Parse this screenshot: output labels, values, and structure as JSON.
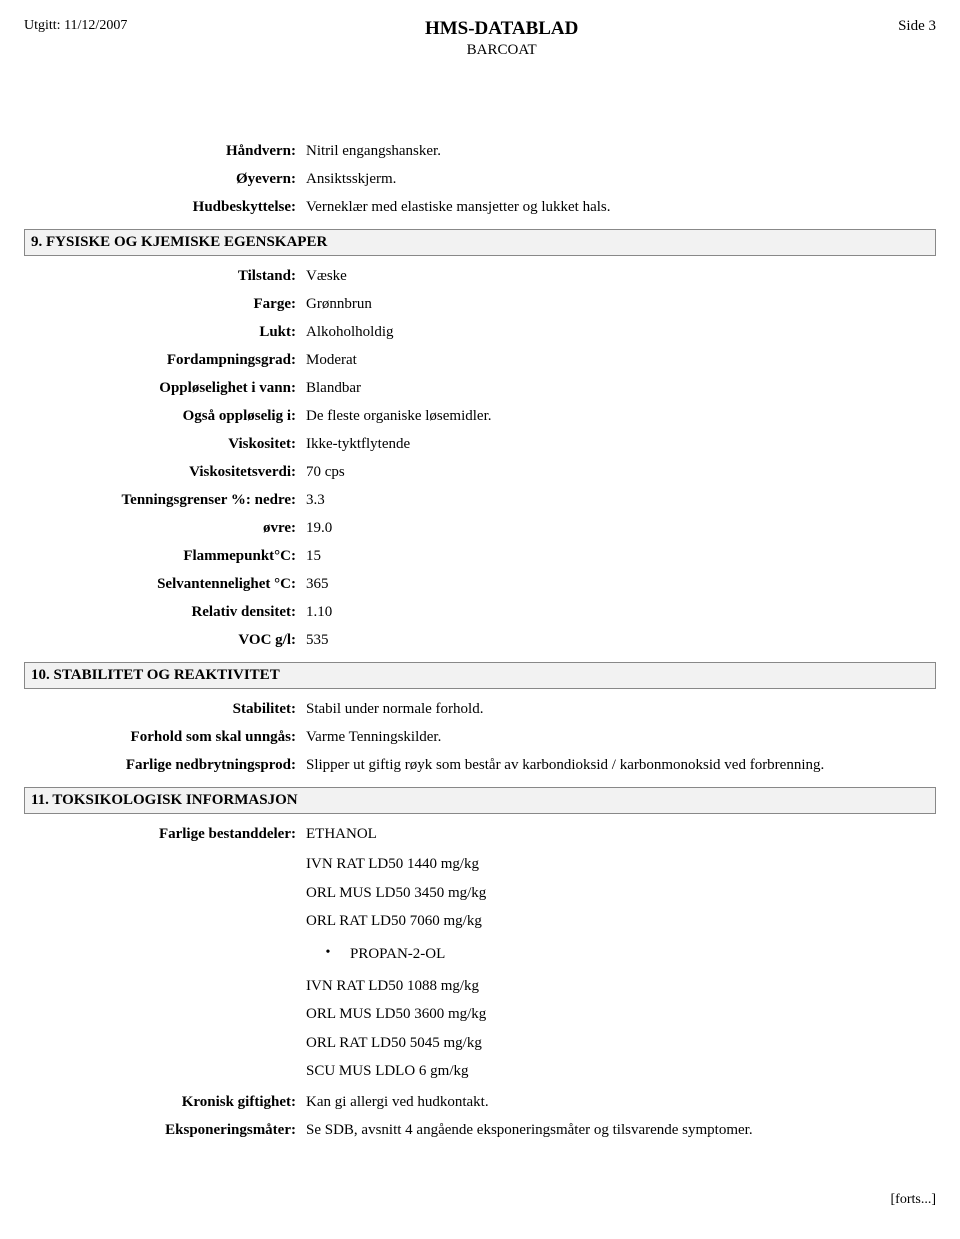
{
  "header": {
    "issued_label": "Utgitt:",
    "issued_date": "11/12/2007",
    "doc_title": "HMS-DATABLAD",
    "product": "BARCOAT",
    "page_label": "Side 3"
  },
  "ppe": {
    "hand_label": "Håndvern:",
    "hand_value": "Nitril engangshansker.",
    "eye_label": "Øyevern:",
    "eye_value": "Ansiktsskjerm.",
    "skin_label": "Hudbeskyttelse:",
    "skin_value": "Verneklær med elastiske mansjetter og lukket hals."
  },
  "sec9": {
    "title": "9. FYSISKE OG KJEMISKE EGENSKAPER",
    "state_label": "Tilstand:",
    "state_value": "Væske",
    "color_label": "Farge:",
    "color_value": "Grønnbrun",
    "odour_label": "Lukt:",
    "odour_value": "Alkoholholdig",
    "evap_label": "Fordampningsgrad:",
    "evap_value": "Moderat",
    "solw_label": "Oppløselighet i vann:",
    "solw_value": "Blandbar",
    "alsosol_label": "Også oppløselig i:",
    "alsosol_value": "De fleste organiske løsemidler.",
    "visc_label": "Viskositet:",
    "visc_value": "Ikke-tyktflytende",
    "viscval_label": "Viskositetsverdi:",
    "viscval_value": "70 cps",
    "flamlow_label": "Tenningsgrenser %: nedre:",
    "flamlow_value": "3.3",
    "flamup_label": "øvre:",
    "flamup_value": "19.0",
    "flash_label": "Flammepunkt°C:",
    "flash_value": "15",
    "autoig_label": "Selvantennelighet °C:",
    "autoig_value": "365",
    "reldens_label": "Relativ densitet:",
    "reldens_value": "1.10",
    "voc_label": "VOC g/l:",
    "voc_value": "535"
  },
  "sec10": {
    "title": "10. STABILITET OG REAKTIVITET",
    "stab_label": "Stabilitet:",
    "stab_value": "Stabil under normale forhold.",
    "avoid_label": "Forhold som skal unngås:",
    "avoid_value": "Varme Tenningskilder.",
    "decomp_label": "Farlige nedbrytningsprod:",
    "decomp_value": "Slipper ut giftig røyk som består av karbondioksid / karbonmonoksid ved forbrenning."
  },
  "sec11": {
    "title": "11. TOKSIKOLOGISK INFORMASJON",
    "ingredients_label": "Farlige bestanddeler:",
    "eth_name": "ETHANOL",
    "eth_l1": "IVN RAT LD50 1440 mg/kg",
    "eth_l2": "ORL MUS LD50 3450 mg/kg",
    "eth_l3": "ORL RAT LD50 7060 mg/kg",
    "ipa_name": "PROPAN-2-OL",
    "ipa_l1": "IVN RAT LD50 1088 mg/kg",
    "ipa_l2": "ORL MUS LD50 3600 mg/kg",
    "ipa_l3": "ORL RAT LD50 5045 mg/kg",
    "ipa_l4": "SCU MUS LDLO 6 gm/kg",
    "chronic_label": "Kronisk giftighet:",
    "chronic_value": "Kan gi allergi ved hudkontakt.",
    "routes_label": "Eksponeringsmåter:",
    "routes_value": "Se SDB, avsnitt 4 angående eksponeringsmåter og tilsvarende symptomer."
  },
  "footer": {
    "cont": "[forts...]"
  }
}
